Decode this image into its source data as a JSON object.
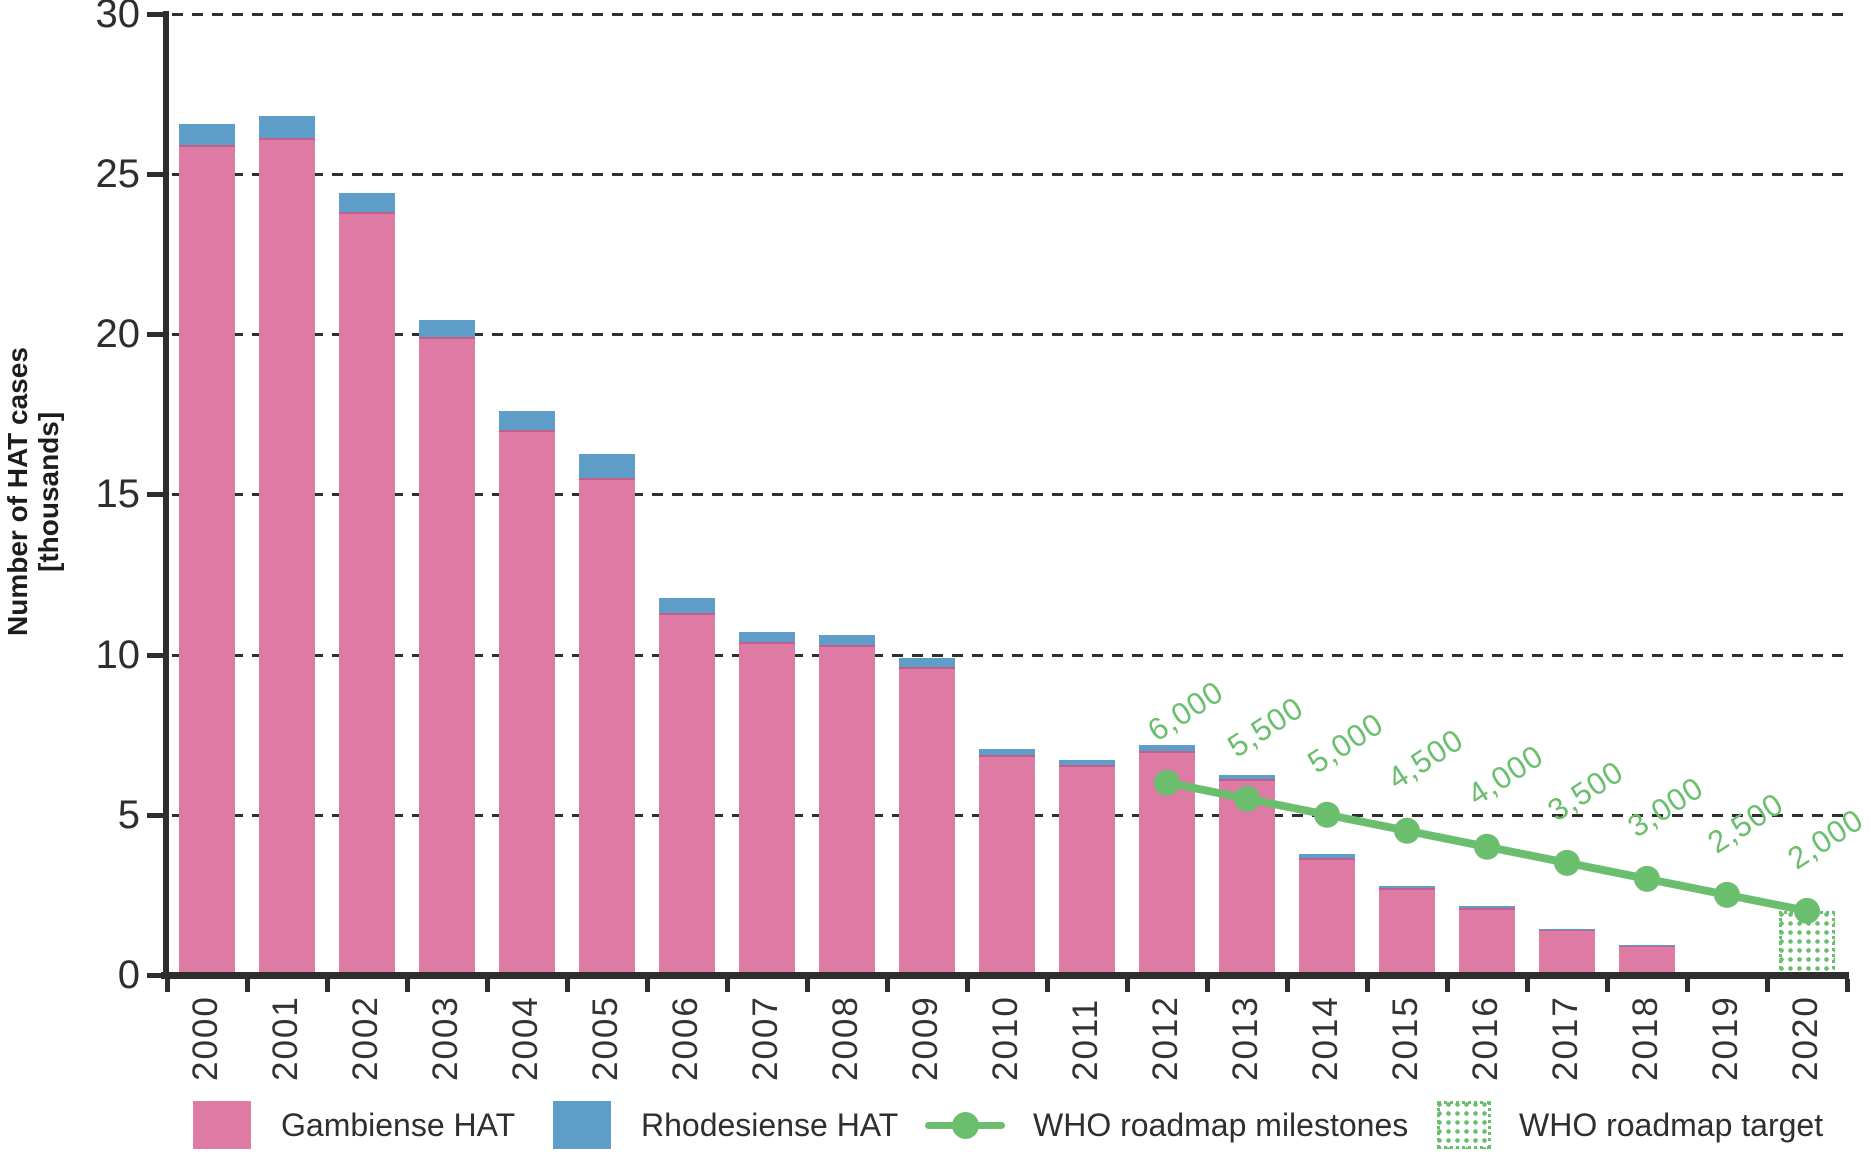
{
  "chart_data": {
    "type": "bar",
    "title": "",
    "ylabel_lines": [
      "Number of HAT cases",
      "[thousands]"
    ],
    "categories": [
      "2000",
      "2001",
      "2002",
      "2003",
      "2004",
      "2005",
      "2006",
      "2007",
      "2008",
      "2009",
      "2010",
      "2011",
      "2012",
      "2013",
      "2014",
      "2015",
      "2016",
      "2017",
      "2018",
      "2019",
      "2020"
    ],
    "series": [
      {
        "name": "Gambiense HAT",
        "color": "#DE7BA5",
        "edge_color": "#C2608C",
        "values": [
          25.9,
          26.1,
          23.8,
          19.9,
          17.0,
          15.5,
          11.3,
          10.4,
          10.3,
          9.6,
          6.85,
          6.55,
          7.0,
          6.12,
          3.65,
          2.7,
          2.1,
          1.42,
          0.93,
          0,
          0
        ]
      },
      {
        "name": "Rhodesiense HAT",
        "color": "#5F9DC9",
        "values": [
          0.65,
          0.7,
          0.6,
          0.55,
          0.6,
          0.75,
          0.45,
          0.3,
          0.3,
          0.3,
          0.2,
          0.15,
          0.17,
          0.12,
          0.12,
          0.07,
          0.06,
          0.03,
          0.02,
          0,
          0
        ]
      }
    ],
    "milestones": {
      "name": "WHO roadmap milestones",
      "color": "#6BBE6D",
      "points": [
        {
          "category": "2012",
          "value": 6.0,
          "label": "6,000"
        },
        {
          "category": "2013",
          "value": 5.5,
          "label": "5,500"
        },
        {
          "category": "2014",
          "value": 5.0,
          "label": "5,000"
        },
        {
          "category": "2015",
          "value": 4.5,
          "label": "4,500"
        },
        {
          "category": "2016",
          "value": 4.0,
          "label": "4,000"
        },
        {
          "category": "2017",
          "value": 3.5,
          "label": "3,500"
        },
        {
          "category": "2018",
          "value": 3.0,
          "label": "3,000"
        },
        {
          "category": "2019",
          "value": 2.5,
          "label": "2,500"
        },
        {
          "category": "2020",
          "value": 2.0,
          "label": "2,000"
        }
      ]
    },
    "target": {
      "name": "WHO roadmap target",
      "category": "2020",
      "value": 2.0,
      "color": "#6BBE6D"
    },
    "y_axis": {
      "ticks": [
        0,
        5,
        10,
        15,
        20,
        25,
        30
      ],
      "lim": [
        0,
        30
      ],
      "unit": "thousands"
    },
    "grid": {
      "horizontal": "dashed",
      "color": "#2F2F2F"
    },
    "legend_position": "bottom"
  },
  "legend": {
    "items": [
      {
        "label": "Gambiense HAT",
        "swatch": "pink-square",
        "color": "#DE7BA5"
      },
      {
        "label": "Rhodesiense HAT",
        "swatch": "blue-square",
        "color": "#5F9DC9"
      },
      {
        "label": "WHO roadmap milestones",
        "swatch": "green-line-dot",
        "color": "#6BBE6D"
      },
      {
        "label": "WHO roadmap target",
        "swatch": "green-dotted-box",
        "color": "#6BBE6D"
      }
    ]
  }
}
